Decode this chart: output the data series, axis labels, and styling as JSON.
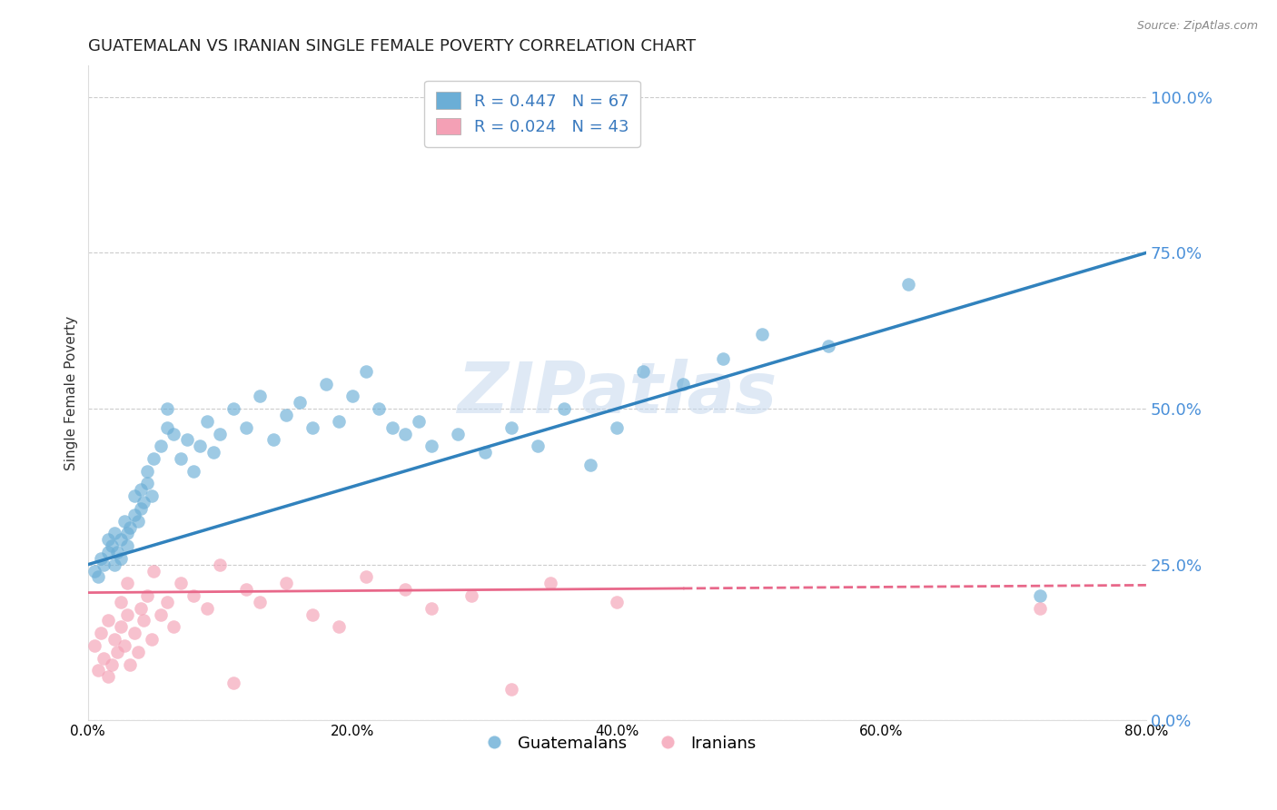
{
  "title": "GUATEMALAN VS IRANIAN SINGLE FEMALE POVERTY CORRELATION CHART",
  "source": "Source: ZipAtlas.com",
  "ylabel": "Single Female Poverty",
  "xlim": [
    0.0,
    0.8
  ],
  "ylim": [
    0.0,
    1.05
  ],
  "guatemalan_R": 0.447,
  "guatemalan_N": 67,
  "iranian_R": 0.024,
  "iranian_N": 43,
  "guatemalan_color": "#6baed6",
  "iranian_color": "#f4a0b5",
  "guatemalan_line_color": "#3182bd",
  "iranian_line_color": "#e8688a",
  "watermark": "ZIPatlas",
  "background_color": "#ffffff",
  "grid_color": "#cccccc",
  "right_axis_color": "#4a90d9",
  "legend_text_color": "#3a7abf",
  "title_fontsize": 13,
  "axis_label_fontsize": 11,
  "tick_fontsize": 11,
  "legend_fontsize": 13,
  "xtick_vals": [
    0.0,
    0.2,
    0.4,
    0.6,
    0.8
  ],
  "xtick_labels": [
    "0.0%",
    "20.0%",
    "40.0%",
    "60.0%",
    "80.0%"
  ],
  "ytick_vals": [
    0.0,
    0.25,
    0.5,
    0.75,
    1.0
  ],
  "ytick_labels": [
    "0.0%",
    "25.0%",
    "50.0%",
    "75.0%",
    "100.0%"
  ],
  "guatemalan_x": [
    0.005,
    0.008,
    0.01,
    0.012,
    0.015,
    0.015,
    0.018,
    0.02,
    0.02,
    0.022,
    0.025,
    0.025,
    0.028,
    0.03,
    0.03,
    0.032,
    0.035,
    0.035,
    0.038,
    0.04,
    0.04,
    0.042,
    0.045,
    0.045,
    0.048,
    0.05,
    0.055,
    0.06,
    0.06,
    0.065,
    0.07,
    0.075,
    0.08,
    0.085,
    0.09,
    0.095,
    0.1,
    0.11,
    0.12,
    0.13,
    0.14,
    0.15,
    0.16,
    0.17,
    0.18,
    0.19,
    0.2,
    0.21,
    0.22,
    0.23,
    0.24,
    0.25,
    0.26,
    0.28,
    0.3,
    0.32,
    0.34,
    0.36,
    0.38,
    0.4,
    0.42,
    0.45,
    0.48,
    0.51,
    0.56,
    0.62,
    0.72
  ],
  "guatemalan_y": [
    0.24,
    0.23,
    0.26,
    0.25,
    0.27,
    0.29,
    0.28,
    0.25,
    0.3,
    0.27,
    0.26,
    0.29,
    0.32,
    0.3,
    0.28,
    0.31,
    0.33,
    0.36,
    0.32,
    0.34,
    0.37,
    0.35,
    0.38,
    0.4,
    0.36,
    0.42,
    0.44,
    0.47,
    0.5,
    0.46,
    0.42,
    0.45,
    0.4,
    0.44,
    0.48,
    0.43,
    0.46,
    0.5,
    0.47,
    0.52,
    0.45,
    0.49,
    0.51,
    0.47,
    0.54,
    0.48,
    0.52,
    0.56,
    0.5,
    0.47,
    0.46,
    0.48,
    0.44,
    0.46,
    0.43,
    0.47,
    0.44,
    0.5,
    0.41,
    0.47,
    0.56,
    0.54,
    0.58,
    0.62,
    0.6,
    0.7,
    0.2
  ],
  "iranian_x": [
    0.005,
    0.008,
    0.01,
    0.012,
    0.015,
    0.015,
    0.018,
    0.02,
    0.022,
    0.025,
    0.025,
    0.028,
    0.03,
    0.03,
    0.032,
    0.035,
    0.038,
    0.04,
    0.042,
    0.045,
    0.048,
    0.05,
    0.055,
    0.06,
    0.065,
    0.07,
    0.08,
    0.09,
    0.1,
    0.11,
    0.12,
    0.13,
    0.15,
    0.17,
    0.19,
    0.21,
    0.24,
    0.26,
    0.29,
    0.32,
    0.35,
    0.4,
    0.72
  ],
  "iranian_y": [
    0.12,
    0.08,
    0.14,
    0.1,
    0.16,
    0.07,
    0.09,
    0.13,
    0.11,
    0.15,
    0.19,
    0.12,
    0.17,
    0.22,
    0.09,
    0.14,
    0.11,
    0.18,
    0.16,
    0.2,
    0.13,
    0.24,
    0.17,
    0.19,
    0.15,
    0.22,
    0.2,
    0.18,
    0.25,
    0.06,
    0.21,
    0.19,
    0.22,
    0.17,
    0.15,
    0.23,
    0.21,
    0.18,
    0.2,
    0.05,
    0.22,
    0.19,
    0.18
  ]
}
